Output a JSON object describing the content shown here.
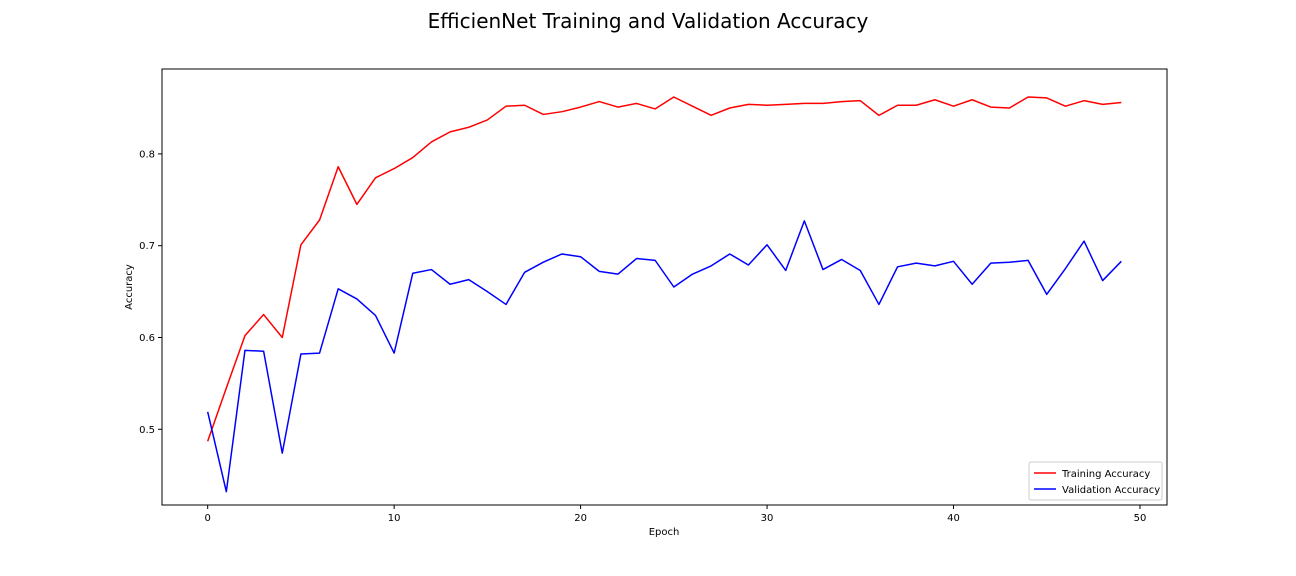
{
  "chart_data": {
    "type": "line",
    "title": "EfficienNet Training and Validation Accuracy",
    "xlabel": "Epoch",
    "ylabel": "Accuracy",
    "xlim": [
      -2.45,
      51.45
    ],
    "ylim": [
      0.4175,
      0.8925
    ],
    "xticks": [
      0,
      10,
      20,
      30,
      40,
      50
    ],
    "yticks": [
      0.5,
      0.6,
      0.7,
      0.8
    ],
    "legend_position": "lower-right",
    "grid": false,
    "x": [
      0,
      1,
      2,
      3,
      4,
      5,
      6,
      7,
      8,
      9,
      10,
      11,
      12,
      13,
      14,
      15,
      16,
      17,
      18,
      19,
      20,
      21,
      22,
      23,
      24,
      25,
      26,
      27,
      28,
      29,
      30,
      31,
      32,
      33,
      34,
      35,
      36,
      37,
      38,
      39,
      40,
      41,
      42,
      43,
      44,
      45,
      46,
      47,
      48,
      49
    ],
    "series": [
      {
        "name": "Training Accuracy",
        "color": "#ff0000",
        "values": [
          0.487,
          0.545,
          0.602,
          0.625,
          0.6,
          0.701,
          0.728,
          0.786,
          0.745,
          0.774,
          0.784,
          0.796,
          0.813,
          0.824,
          0.829,
          0.837,
          0.852,
          0.853,
          0.843,
          0.846,
          0.851,
          0.857,
          0.851,
          0.855,
          0.849,
          0.862,
          0.852,
          0.842,
          0.85,
          0.854,
          0.853,
          0.854,
          0.855,
          0.855,
          0.857,
          0.858,
          0.842,
          0.853,
          0.853,
          0.859,
          0.852,
          0.859,
          0.851,
          0.85,
          0.862,
          0.861,
          0.852,
          0.858,
          0.854,
          0.856
        ]
      },
      {
        "name": "Validation Accuracy",
        "color": "#0000ff",
        "values": [
          0.519,
          0.432,
          0.586,
          0.585,
          0.474,
          0.582,
          0.583,
          0.653,
          0.642,
          0.624,
          0.583,
          0.67,
          0.674,
          0.658,
          0.663,
          0.65,
          0.636,
          0.671,
          0.682,
          0.691,
          0.688,
          0.672,
          0.669,
          0.686,
          0.684,
          0.655,
          0.669,
          0.678,
          0.691,
          0.679,
          0.701,
          0.673,
          0.727,
          0.674,
          0.685,
          0.673,
          0.636,
          0.677,
          0.681,
          0.678,
          0.683,
          0.658,
          0.681,
          0.682,
          0.684,
          0.647,
          0.675,
          0.705,
          0.662,
          0.683
        ]
      }
    ]
  }
}
